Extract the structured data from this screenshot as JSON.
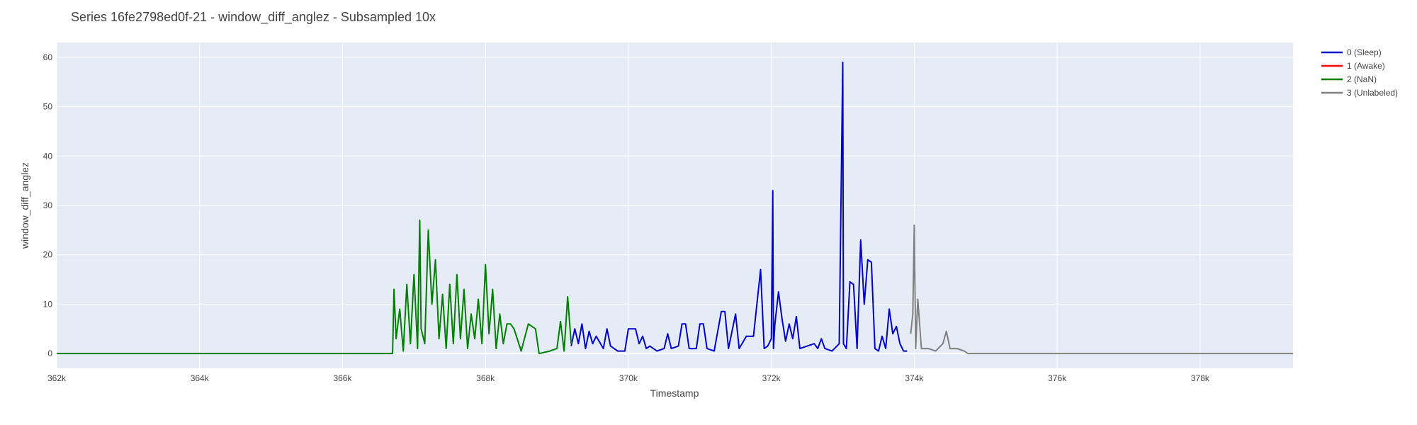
{
  "chart_data": {
    "type": "line",
    "title": "Series 16fe2798ed0f-21 - window_diff_anglez - Subsampled 10x",
    "xlabel": "Timestamp",
    "ylabel": "window_diff_anglez",
    "xlim": [
      362000,
      379300
    ],
    "ylim": [
      -3,
      63
    ],
    "xticks": [
      362000,
      364000,
      366000,
      368000,
      370000,
      372000,
      374000,
      376000,
      378000
    ],
    "xtick_labels": [
      "362k",
      "364k",
      "366k",
      "368k",
      "370k",
      "372k",
      "374k",
      "376k",
      "378k"
    ],
    "yticks": [
      0,
      10,
      20,
      30,
      40,
      50,
      60
    ],
    "ytick_labels": [
      "0",
      "10",
      "20",
      "30",
      "40",
      "50",
      "60"
    ],
    "grid": true,
    "legend_position": "top-right, outside plot",
    "plot_background": "#e5ecf6",
    "series": [
      {
        "name": "0 (Sleep)",
        "color": "#0000cc",
        "points": [
          [
            369200,
            1.5
          ],
          [
            369250,
            5
          ],
          [
            369300,
            2
          ],
          [
            369350,
            6
          ],
          [
            369400,
            1
          ],
          [
            369450,
            4.5
          ],
          [
            369500,
            2
          ],
          [
            369550,
            3.5
          ],
          [
            369650,
            1
          ],
          [
            369700,
            5
          ],
          [
            369750,
            1.5
          ],
          [
            369800,
            1
          ],
          [
            369850,
            0.5
          ],
          [
            369950,
            0.5
          ],
          [
            370000,
            5
          ],
          [
            370100,
            5
          ],
          [
            370150,
            2
          ],
          [
            370200,
            3.5
          ],
          [
            370250,
            1
          ],
          [
            370300,
            1.5
          ],
          [
            370400,
            0.5
          ],
          [
            370500,
            1
          ],
          [
            370550,
            4
          ],
          [
            370600,
            1
          ],
          [
            370700,
            1.5
          ],
          [
            370750,
            6
          ],
          [
            370800,
            6
          ],
          [
            370850,
            1
          ],
          [
            370950,
            1
          ],
          [
            371000,
            6
          ],
          [
            371050,
            6
          ],
          [
            371100,
            1
          ],
          [
            371200,
            0.5
          ],
          [
            371300,
            8.5
          ],
          [
            371350,
            8.5
          ],
          [
            371400,
            1
          ],
          [
            371500,
            8
          ],
          [
            371550,
            1
          ],
          [
            371650,
            3.5
          ],
          [
            371750,
            3.5
          ],
          [
            371850,
            17
          ],
          [
            371900,
            1
          ],
          [
            371950,
            1.5
          ],
          [
            372000,
            3
          ],
          [
            372020,
            33
          ],
          [
            372030,
            1
          ],
          [
            372050,
            6
          ],
          [
            372100,
            12.5
          ],
          [
            372150,
            7
          ],
          [
            372200,
            2.5
          ],
          [
            372250,
            6
          ],
          [
            372300,
            3
          ],
          [
            372350,
            7.5
          ],
          [
            372400,
            1
          ],
          [
            372500,
            1.5
          ],
          [
            372600,
            2
          ],
          [
            372650,
            1
          ],
          [
            372700,
            3
          ],
          [
            372750,
            1
          ],
          [
            372850,
            0.5
          ],
          [
            372950,
            2
          ],
          [
            373000,
            59
          ],
          [
            373010,
            2
          ],
          [
            373050,
            1
          ],
          [
            373100,
            14.5
          ],
          [
            373150,
            14
          ],
          [
            373200,
            1
          ],
          [
            373250,
            23
          ],
          [
            373300,
            10
          ],
          [
            373350,
            19
          ],
          [
            373400,
            18.5
          ],
          [
            373450,
            1
          ],
          [
            373500,
            0.5
          ],
          [
            373550,
            3.5
          ],
          [
            373600,
            1
          ],
          [
            373650,
            9
          ],
          [
            373700,
            4
          ],
          [
            373750,
            5.5
          ],
          [
            373800,
            2
          ],
          [
            373850,
            0.5
          ],
          [
            373900,
            0.5
          ]
        ]
      },
      {
        "name": "1 (Awake)",
        "color": "#ff0000",
        "points": []
      },
      {
        "name": "2 (NaN)",
        "color": "#008000",
        "points": [
          [
            362000,
            0
          ],
          [
            366700,
            0
          ],
          [
            366720,
            13
          ],
          [
            366750,
            3
          ],
          [
            366800,
            9
          ],
          [
            366850,
            0.5
          ],
          [
            366900,
            14
          ],
          [
            366950,
            2
          ],
          [
            367000,
            16
          ],
          [
            367050,
            1
          ],
          [
            367080,
            27
          ],
          [
            367100,
            5
          ],
          [
            367150,
            2
          ],
          [
            367200,
            25
          ],
          [
            367250,
            10
          ],
          [
            367300,
            19
          ],
          [
            367350,
            3
          ],
          [
            367400,
            12
          ],
          [
            367450,
            1
          ],
          [
            367500,
            14
          ],
          [
            367550,
            2
          ],
          [
            367600,
            16
          ],
          [
            367650,
            3
          ],
          [
            367700,
            13
          ],
          [
            367750,
            1
          ],
          [
            367800,
            8
          ],
          [
            367850,
            3
          ],
          [
            367900,
            11
          ],
          [
            367950,
            2
          ],
          [
            368000,
            18
          ],
          [
            368050,
            4
          ],
          [
            368100,
            13
          ],
          [
            368150,
            1
          ],
          [
            368200,
            8
          ],
          [
            368250,
            2
          ],
          [
            368300,
            6
          ],
          [
            368350,
            6
          ],
          [
            368400,
            5
          ],
          [
            368500,
            0.5
          ],
          [
            368600,
            6
          ],
          [
            368700,
            5
          ],
          [
            368750,
            0
          ],
          [
            368900,
            0.5
          ],
          [
            369000,
            1
          ],
          [
            369050,
            6.5
          ],
          [
            369100,
            0.5
          ],
          [
            369150,
            11.5
          ],
          [
            369200,
            2
          ]
        ]
      },
      {
        "name": "3 (Unlabeled)",
        "color": "#808080",
        "points": [
          [
            373950,
            4
          ],
          [
            373980,
            8
          ],
          [
            374000,
            26
          ],
          [
            374020,
            1
          ],
          [
            374050,
            11
          ],
          [
            374100,
            1
          ],
          [
            374200,
            1
          ],
          [
            374300,
            0.5
          ],
          [
            374400,
            2
          ],
          [
            374450,
            4.5
          ],
          [
            374500,
            1
          ],
          [
            374600,
            1
          ],
          [
            374700,
            0.5
          ],
          [
            374750,
            0
          ],
          [
            379300,
            0
          ]
        ]
      }
    ]
  }
}
